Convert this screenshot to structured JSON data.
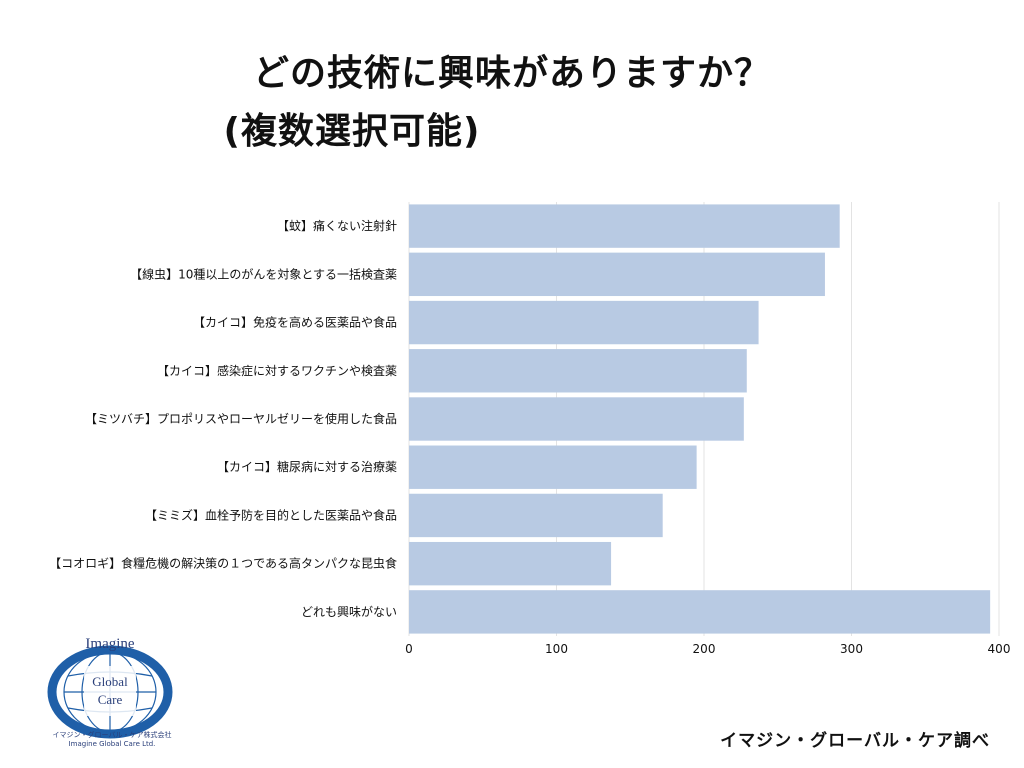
{
  "title_line1": "どの技術に興味がありますか？",
  "title_line2": "(複数選択可能)",
  "source": "イマジン・グローバル・ケア調べ",
  "logo": {
    "text_top": "Imagine",
    "text_mid": "Global",
    "text_bot": "Care",
    "caption_jp": "イマジン・グローバル・ケア株式会社",
    "caption_en": "Imagine Global Care Ltd."
  },
  "colors": {
    "bar": "#b8cae3",
    "grid": "#e3e3e3",
    "logo": "#1f5fa8"
  },
  "chart_data": {
    "type": "bar",
    "orientation": "horizontal",
    "categories": [
      "【蚊】痛くない注射針",
      "【線虫】10種以上のがんを対象とする一括検査薬",
      "【カイコ】免疫を高める医薬品や食品",
      "【カイコ】感染症に対するワクチンや検査薬",
      "【ミツバチ】プロポリスやローヤルゼリーを使用した食品",
      "【カイコ】糖尿病に対する治療薬",
      "【ミミズ】血栓予防を目的とした医薬品や食品",
      "【コオロギ】食糧危機の解決策の１つである高タンパクな昆虫食",
      "どれも興味がない"
    ],
    "values": [
      292,
      282,
      237,
      229,
      227,
      195,
      172,
      137,
      394
    ],
    "xlim": [
      0,
      400
    ],
    "xticks": [
      "0",
      "100",
      "200",
      "300",
      "400"
    ],
    "grid": true,
    "legend": "none"
  }
}
